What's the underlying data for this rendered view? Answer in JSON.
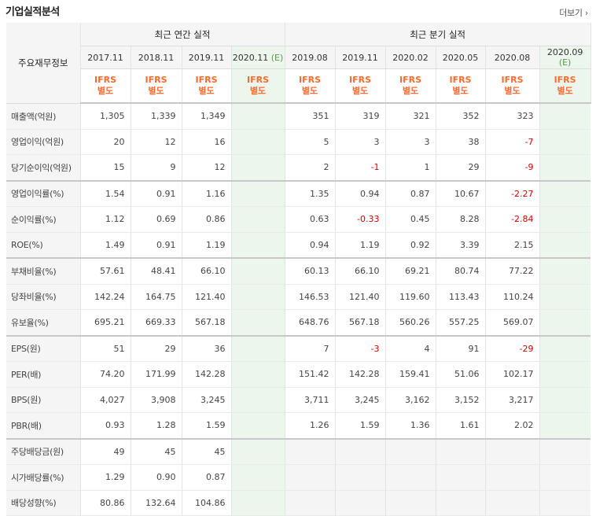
{
  "header": {
    "title": "기업실적분석",
    "more_label": "더보기",
    "more_icon": "chevron-right-icon"
  },
  "table": {
    "corner_label": "주요재무정보",
    "annual_label": "최근 연간 실적",
    "quarterly_label": "최근 분기 실적",
    "annual_periods": [
      "2017.11",
      "2018.11",
      "2019.11",
      "2020.11"
    ],
    "annual_est_mark": "(E)",
    "quarterly_periods": [
      "2019.08",
      "2019.11",
      "2020.02",
      "2020.05",
      "2020.08",
      "2020.09"
    ],
    "quarterly_est_mark": "(E)",
    "ifrs_line1": "IFRS",
    "ifrs_line2": "별도",
    "rows": [
      {
        "label": "매출액(억원)",
        "annual": [
          "1,305",
          "1,339",
          "1,349",
          ""
        ],
        "quarterly": [
          "351",
          "319",
          "321",
          "352",
          "323",
          ""
        ]
      },
      {
        "label": "영업이익(억원)",
        "annual": [
          "20",
          "12",
          "16",
          ""
        ],
        "quarterly": [
          "5",
          "3",
          "3",
          "38",
          "-7",
          ""
        ]
      },
      {
        "label": "당기순이익(억원)",
        "annual": [
          "15",
          "9",
          "12",
          ""
        ],
        "quarterly": [
          "2",
          "-1",
          "1",
          "29",
          "-9",
          ""
        ]
      },
      {
        "label": "영업이익률(%)",
        "annual": [
          "1.54",
          "0.91",
          "1.16",
          ""
        ],
        "quarterly": [
          "1.35",
          "0.94",
          "0.87",
          "10.67",
          "-2.27",
          ""
        ]
      },
      {
        "label": "순이익률(%)",
        "annual": [
          "1.12",
          "0.69",
          "0.86",
          ""
        ],
        "quarterly": [
          "0.63",
          "-0.33",
          "0.45",
          "8.28",
          "-2.84",
          ""
        ]
      },
      {
        "label": "ROE(%)",
        "annual": [
          "1.49",
          "0.91",
          "1.19",
          ""
        ],
        "quarterly": [
          "0.94",
          "1.19",
          "0.92",
          "3.39",
          "2.15",
          ""
        ]
      },
      {
        "label": "부채비율(%)",
        "annual": [
          "57.61",
          "48.41",
          "66.10",
          ""
        ],
        "quarterly": [
          "60.13",
          "66.10",
          "69.21",
          "80.74",
          "77.22",
          ""
        ]
      },
      {
        "label": "당좌비율(%)",
        "annual": [
          "142.24",
          "164.75",
          "121.40",
          ""
        ],
        "quarterly": [
          "146.53",
          "121.40",
          "119.60",
          "113.43",
          "110.24",
          ""
        ]
      },
      {
        "label": "유보율(%)",
        "annual": [
          "695.21",
          "669.33",
          "567.18",
          ""
        ],
        "quarterly": [
          "648.76",
          "567.18",
          "560.26",
          "557.25",
          "569.07",
          ""
        ]
      },
      {
        "label": "EPS(원)",
        "annual": [
          "51",
          "29",
          "36",
          ""
        ],
        "quarterly": [
          "7",
          "-3",
          "4",
          "91",
          "-29",
          ""
        ]
      },
      {
        "label": "PER(배)",
        "annual": [
          "74.20",
          "171.99",
          "142.28",
          ""
        ],
        "quarterly": [
          "151.42",
          "142.28",
          "159.41",
          "51.06",
          "102.17",
          ""
        ]
      },
      {
        "label": "BPS(원)",
        "annual": [
          "4,027",
          "3,908",
          "3,245",
          ""
        ],
        "quarterly": [
          "3,711",
          "3,245",
          "3,162",
          "3,152",
          "3,217",
          ""
        ]
      },
      {
        "label": "PBR(배)",
        "annual": [
          "0.93",
          "1.28",
          "1.59",
          ""
        ],
        "quarterly": [
          "1.26",
          "1.59",
          "1.36",
          "1.61",
          "2.02",
          ""
        ]
      },
      {
        "label": "주당배당금(원)",
        "annual": [
          "49",
          "45",
          "45",
          ""
        ],
        "quarterly": [
          "",
          "",
          "",
          "",
          "",
          ""
        ]
      },
      {
        "label": "시가배당률(%)",
        "annual": [
          "1.29",
          "0.90",
          "0.87",
          ""
        ],
        "quarterly": [
          "",
          "",
          "",
          "",
          "",
          ""
        ]
      },
      {
        "label": "배당성향(%)",
        "annual": [
          "80.86",
          "132.64",
          "104.86",
          ""
        ],
        "quarterly": [
          "",
          "",
          "",
          "",
          "",
          ""
        ]
      }
    ],
    "group_ends": [
      2,
      5,
      8,
      12
    ],
    "empty_quarterly_rows": [
      13,
      14,
      15
    ],
    "colors": {
      "negative": "#d50000",
      "ifrs": "#ff6a2f",
      "estimate_bg": "#edf6ec",
      "estimate_mark": "#5a9a4a"
    }
  }
}
